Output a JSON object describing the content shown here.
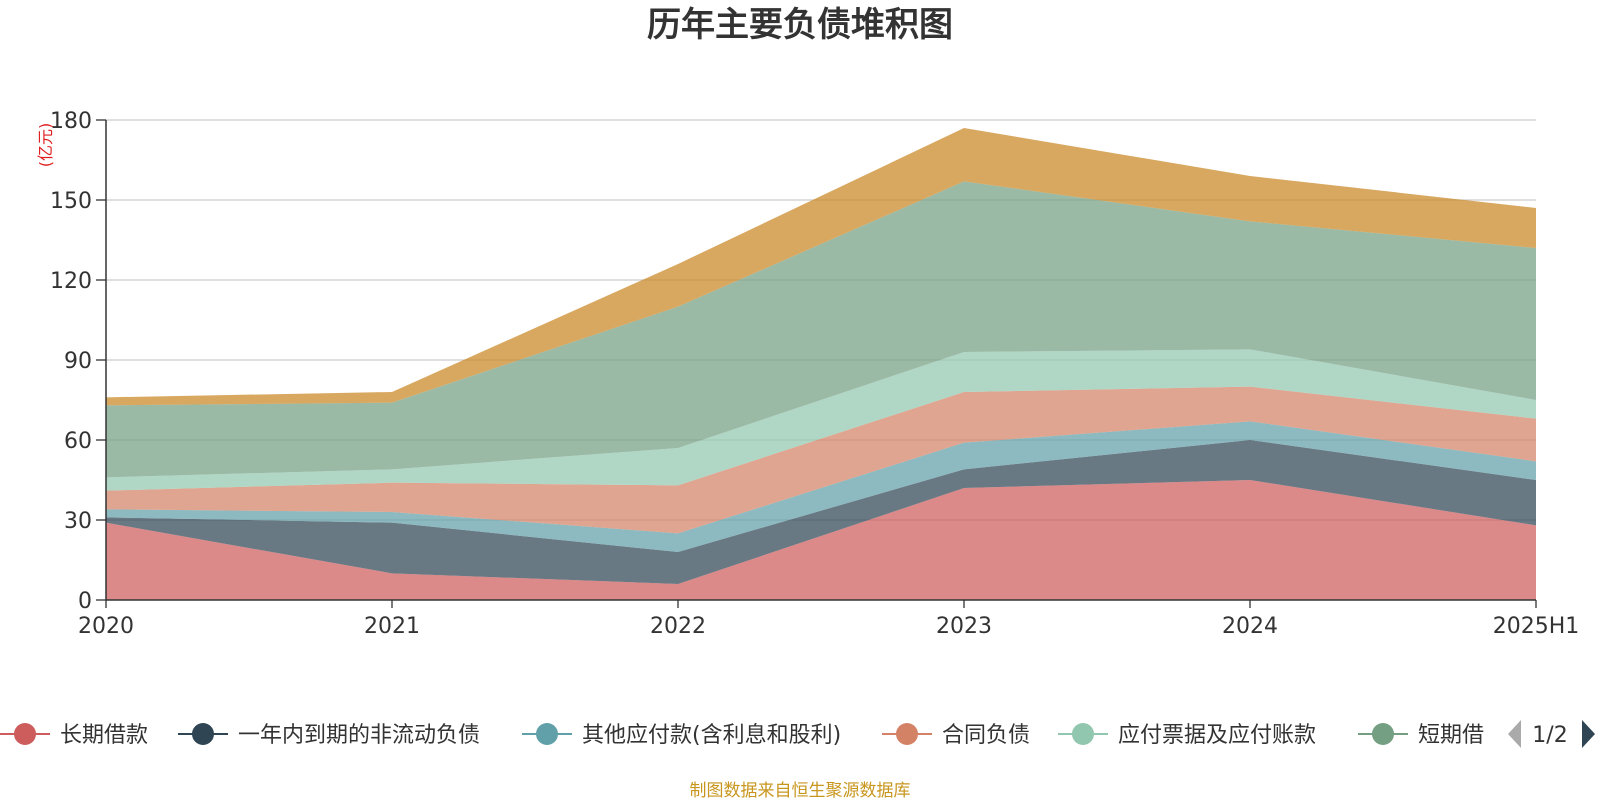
{
  "chart_data": {
    "type": "area",
    "stacked": true,
    "title": "历年主要负债堆积图",
    "y_unit": "(亿元)",
    "x": [
      "2020",
      "2021",
      "2022",
      "2023",
      "2024",
      "2025H1"
    ],
    "ylim": [
      0,
      180
    ],
    "yticks": [
      "0",
      "30",
      "60",
      "90",
      "120",
      "150",
      "180"
    ],
    "grid": true,
    "series": [
      {
        "name": "长期借款",
        "color": "#cd5c5c",
        "values": [
          29,
          10,
          6,
          42,
          45,
          28
        ]
      },
      {
        "name": "一年内到期的非流动负债",
        "color": "#2f4554",
        "values": [
          2,
          19,
          12,
          7,
          15,
          17
        ]
      },
      {
        "name": "其他应付款(含利息和股利)",
        "color": "#61a0a8",
        "values": [
          3,
          4,
          7,
          10,
          7,
          7
        ]
      },
      {
        "name": "合同负债",
        "color": "#d48265",
        "values": [
          7,
          11,
          18,
          19,
          13,
          16
        ]
      },
      {
        "name": "应付票据及应付账款",
        "color": "#91c7ae",
        "values": [
          5,
          5,
          14,
          15,
          14,
          7
        ]
      },
      {
        "name": "短期借款",
        "color": "#749f83",
        "values": [
          27,
          25,
          53,
          64,
          48,
          57
        ]
      },
      {
        "name": "",
        "color": "#ca8622",
        "values": [
          3,
          4,
          16,
          20,
          17,
          15
        ]
      }
    ],
    "legend": {
      "position": "bottom",
      "visible_labels": [
        "长期借款",
        "一年内到期的非流动负债",
        "其他应付款(含利息和股利)",
        "合同负债",
        "应付票据及应付账款",
        "短期借"
      ],
      "page": "1/2"
    },
    "source": "制图数据来自恒生聚源数据库"
  }
}
